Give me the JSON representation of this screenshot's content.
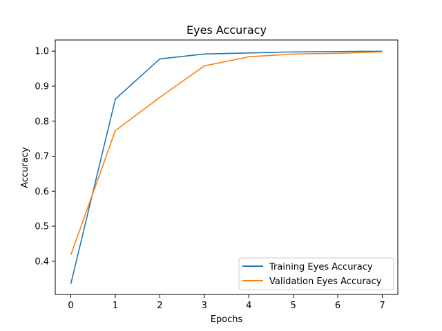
{
  "chart_data": {
    "type": "line",
    "title": "Eyes Accuracy",
    "xlabel": "Epochs",
    "ylabel": "Accuracy",
    "x": [
      0,
      1,
      2,
      3,
      4,
      5,
      6,
      7
    ],
    "xlim": [
      -0.35,
      7.35
    ],
    "ylim": [
      0.305,
      1.032
    ],
    "xticks": [
      0,
      1,
      2,
      3,
      4,
      5,
      6,
      7
    ],
    "yticks": [
      0.4,
      0.5,
      0.6,
      0.7,
      0.8,
      0.9,
      1.0
    ],
    "ytick_labels": [
      "0.4",
      "0.5",
      "0.6",
      "0.7",
      "0.8",
      "0.9",
      "1.0"
    ],
    "grid": false,
    "legend_position": "lower-right",
    "series": [
      {
        "name": "Training Eyes Accuracy",
        "color": "#1f77b4",
        "values": [
          0.335,
          0.863,
          0.978,
          0.992,
          0.995,
          0.998,
          0.999,
          1.0
        ]
      },
      {
        "name": "Validation Eyes Accuracy",
        "color": "#ff7f0e",
        "values": [
          0.418,
          0.773,
          0.868,
          0.958,
          0.984,
          0.992,
          0.994,
          0.998
        ]
      }
    ]
  }
}
